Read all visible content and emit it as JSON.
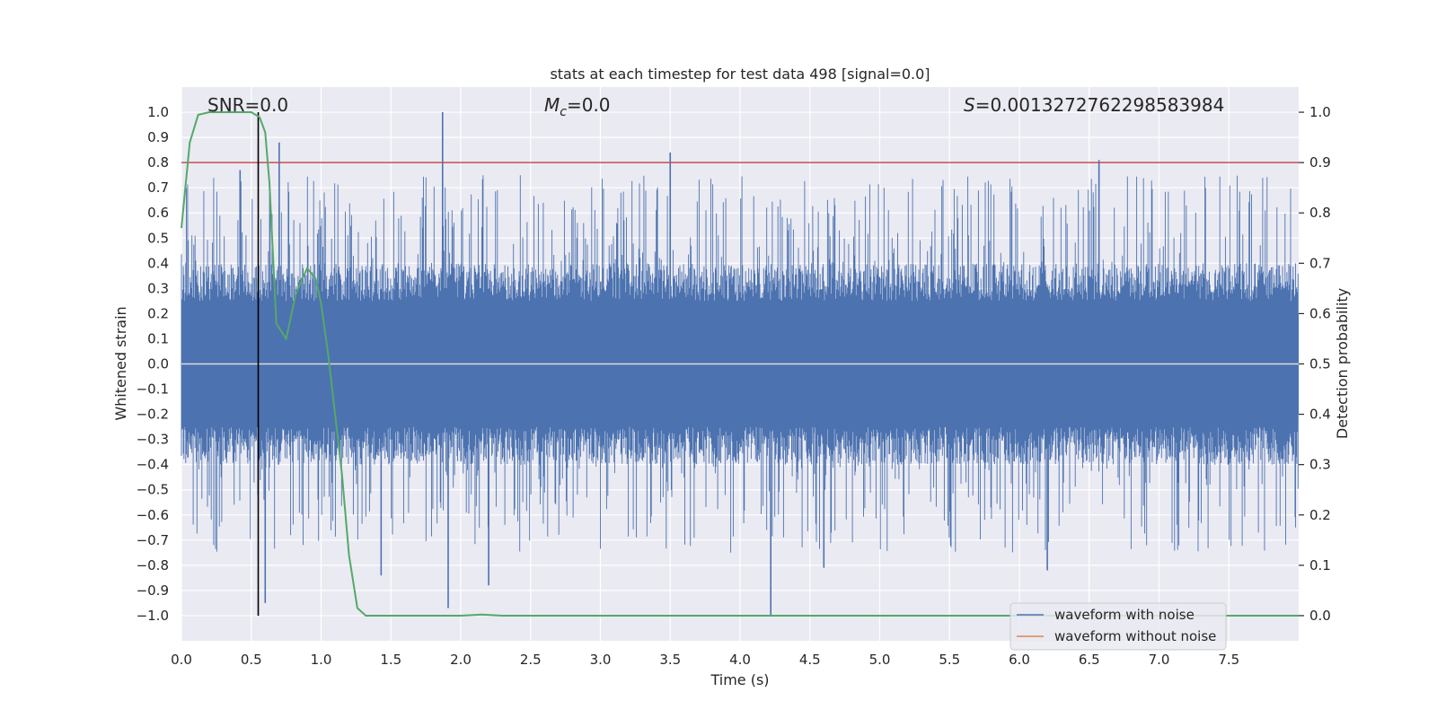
{
  "chart_data": {
    "type": "line",
    "title": "stats at each timestep for test data 498 [signal=0.0]",
    "xlabel": "Time (s)",
    "ylabel": "Whitened strain",
    "ylabel_right": "Detection probability",
    "xlim": [
      0.0,
      8.0
    ],
    "ylim": [
      -1.1,
      1.1
    ],
    "ylim_right": [
      -0.05,
      1.05
    ],
    "grid": true,
    "xticks": [
      "0.0",
      "0.5",
      "1.0",
      "1.5",
      "2.0",
      "2.5",
      "3.0",
      "3.5",
      "4.0",
      "4.5",
      "5.0",
      "5.5",
      "6.0",
      "6.5",
      "7.0",
      "7.5"
    ],
    "xtick_values": [
      0.0,
      0.5,
      1.0,
      1.5,
      2.0,
      2.5,
      3.0,
      3.5,
      4.0,
      4.5,
      5.0,
      5.5,
      6.0,
      6.5,
      7.0,
      7.5
    ],
    "yticks": [
      "1.0",
      "0.9",
      "0.8",
      "0.7",
      "0.6",
      "0.5",
      "0.4",
      "0.3",
      "0.2",
      "0.1",
      "0.0",
      "−0.1",
      "−0.2",
      "−0.3",
      "−0.4",
      "−0.5",
      "−0.6",
      "−0.7",
      "−0.8",
      "−0.9",
      "−1.0"
    ],
    "ytick_values": [
      1.0,
      0.9,
      0.8,
      0.7,
      0.6,
      0.5,
      0.4,
      0.3,
      0.2,
      0.1,
      0.0,
      -0.1,
      -0.2,
      -0.3,
      -0.4,
      -0.5,
      -0.6,
      -0.7,
      -0.8,
      -0.9,
      -1.0
    ],
    "yticks_right": [
      "1.0",
      "0.9",
      "0.8",
      "0.7",
      "0.6",
      "0.5",
      "0.4",
      "0.3",
      "0.2",
      "0.1",
      "0.0"
    ],
    "ytick_values_right": [
      1.0,
      0.9,
      0.8,
      0.7,
      0.6,
      0.5,
      0.4,
      0.3,
      0.2,
      0.1,
      0.0
    ],
    "annotations": {
      "snr": "SNR=0.0",
      "mc_symbol": "M",
      "mc_subscript": "c",
      "mc_value": "=0.0",
      "s_symbol": "S",
      "s_value": "=0.0013272762298583984"
    },
    "threshold": {
      "value": 0.8,
      "axis": "left",
      "color": "#c44e52"
    },
    "marker_line": {
      "x": 0.55,
      "y_from": -1.0,
      "y_to": 1.0,
      "color": "#000000"
    },
    "waveform_with_noise": {
      "name": "waveform with noise",
      "color": "#4c72b0",
      "envelope_note": "dense noise filling roughly -0.4..0.4 with spikes",
      "spikes": [
        {
          "x": 1.87,
          "y": 1.0
        },
        {
          "x": 0.7,
          "y": 0.88
        },
        {
          "x": 3.5,
          "y": 0.84
        },
        {
          "x": 6.57,
          "y": 0.81
        },
        {
          "x": 0.42,
          "y": 0.77
        },
        {
          "x": 4.22,
          "y": -1.0
        },
        {
          "x": 1.91,
          "y": -0.97
        },
        {
          "x": 0.6,
          "y": -0.95
        },
        {
          "x": 1.43,
          "y": -0.84
        },
        {
          "x": 2.2,
          "y": -0.88
        },
        {
          "x": 6.2,
          "y": -0.82
        },
        {
          "x": 4.6,
          "y": -0.81
        }
      ]
    },
    "waveform_without_noise": {
      "name": "waveform without noise",
      "color": "#dd8452",
      "x": [
        0.0,
        8.0
      ],
      "y": [
        0.0,
        0.0
      ]
    },
    "detection_probability": {
      "name": "detection probability",
      "color": "#55a868",
      "axis": "right",
      "x": [
        0.0,
        0.06,
        0.12,
        0.2,
        0.3,
        0.4,
        0.5,
        0.56,
        0.6,
        0.63,
        0.68,
        0.75,
        0.82,
        0.9,
        0.96,
        1.0,
        1.05,
        1.1,
        1.15,
        1.2,
        1.26,
        1.32,
        1.45,
        1.6,
        1.8,
        2.0,
        2.15,
        2.3,
        2.6,
        3.0,
        4.0,
        5.0,
        6.0,
        7.0,
        8.0
      ],
      "y": [
        0.77,
        0.94,
        0.995,
        1.0,
        1.0,
        1.0,
        1.0,
        0.99,
        0.96,
        0.86,
        0.58,
        0.55,
        0.64,
        0.69,
        0.67,
        0.62,
        0.52,
        0.4,
        0.28,
        0.12,
        0.015,
        0.0,
        0.0,
        0.0,
        0.0,
        0.0,
        0.002,
        0.0,
        0.0,
        0.0,
        0.0,
        0.0,
        0.0,
        0.0,
        0.0
      ]
    },
    "legend": {
      "placement": "lower-right",
      "entries": [
        {
          "label": "waveform with noise",
          "color": "#4c72b0"
        },
        {
          "label": "waveform without noise",
          "color": "#dd8452"
        }
      ]
    },
    "axes_background": "#eaeaf2",
    "grid_color": "#ffffff"
  }
}
